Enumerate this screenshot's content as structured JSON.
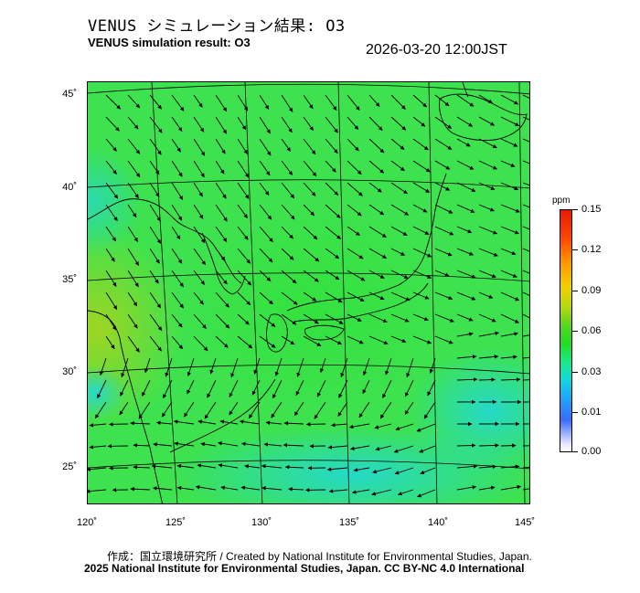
{
  "title_jp": "VENUS シミュレーション結果: O3",
  "title_en": "VENUS simulation result: O3",
  "timestamp": "2026-03-20 12:00JST",
  "map": {
    "latitude_labels": [
      "45˚",
      "40˚",
      "35˚",
      "30˚",
      "25˚"
    ],
    "longitude_labels": [
      "120˚",
      "125˚",
      "130˚",
      "135˚",
      "140˚",
      "145˚"
    ],
    "field_colors": {
      "base": "#3ee24e",
      "low": "#20dcc4",
      "high": "#7bd62c"
    },
    "wind_arrows": "dense black wind vector field"
  },
  "colorbar": {
    "unit": "ppm",
    "labels": [
      "0.15",
      "0.12",
      "0.09",
      "0.06",
      "0.03",
      "0.01",
      "0.00"
    ]
  },
  "credit_line_1": "作成：国立環境研究所 / Created by National Institute for Environmental Studies, Japan.",
  "credit_line_2": "2025 National Institute for Environmental Studies, Japan. CC BY-NC 4.0 International"
}
